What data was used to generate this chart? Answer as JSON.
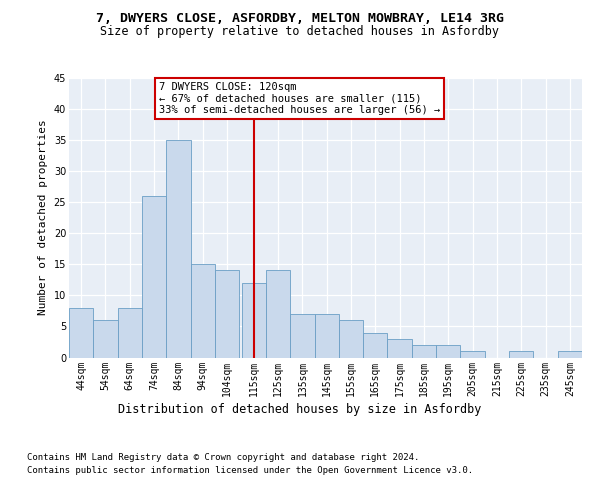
{
  "title1": "7, DWYERS CLOSE, ASFORDBY, MELTON MOWBRAY, LE14 3RG",
  "title2": "Size of property relative to detached houses in Asfordby",
  "xlabel": "Distribution of detached houses by size in Asfordby",
  "ylabel": "Number of detached properties",
  "bar_color": "#c9d9ec",
  "bar_edge_color": "#6a9ec5",
  "bg_color": "#e8eef6",
  "grid_color": "#ffffff",
  "vline_color": "#cc0000",
  "vline_x": 120,
  "categories": [
    "44sqm",
    "54sqm",
    "64sqm",
    "74sqm",
    "84sqm",
    "94sqm",
    "104sqm",
    "115sqm",
    "125sqm",
    "135sqm",
    "145sqm",
    "155sqm",
    "165sqm",
    "175sqm",
    "185sqm",
    "195sqm",
    "205sqm",
    "215sqm",
    "225sqm",
    "235sqm",
    "245sqm"
  ],
  "values": [
    8,
    6,
    8,
    26,
    35,
    15,
    14,
    12,
    14,
    7,
    7,
    6,
    4,
    3,
    2,
    2,
    1,
    0,
    1,
    0,
    1
  ],
  "bin_starts": [
    44,
    54,
    64,
    74,
    84,
    94,
    104,
    115,
    125,
    135,
    145,
    155,
    165,
    175,
    185,
    195,
    205,
    215,
    225,
    235,
    245
  ],
  "bin_width": 10,
  "xlim": [
    44,
    255
  ],
  "ylim": [
    0,
    45
  ],
  "yticks": [
    0,
    5,
    10,
    15,
    20,
    25,
    30,
    35,
    40,
    45
  ],
  "annotation_title": "7 DWYERS CLOSE: 120sqm",
  "annotation_line1": "← 67% of detached houses are smaller (115)",
  "annotation_line2": "33% of semi-detached houses are larger (56) →",
  "annotation_box_edgecolor": "#cc0000",
  "footer1": "Contains HM Land Registry data © Crown copyright and database right 2024.",
  "footer2": "Contains public sector information licensed under the Open Government Licence v3.0.",
  "title_fontsize": 9.5,
  "subtitle_fontsize": 8.5,
  "ylabel_fontsize": 8,
  "tick_fontsize": 7,
  "annotation_fontsize": 7.5,
  "xlabel_fontsize": 8.5,
  "footer_fontsize": 6.5
}
